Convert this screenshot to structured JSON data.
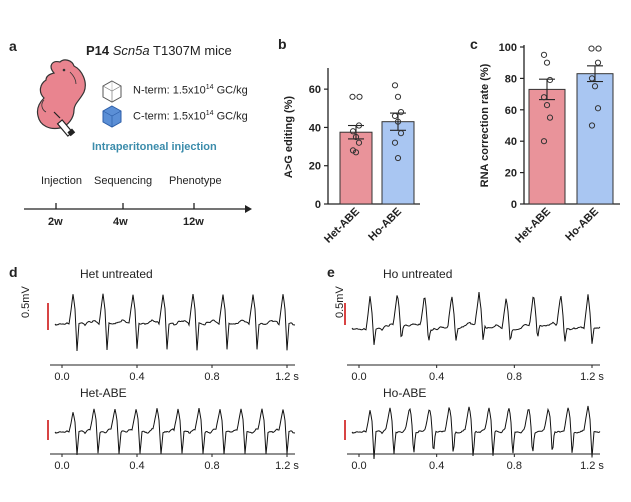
{
  "panel_a": {
    "label": "a",
    "title_bold": "P14",
    "title_gene": "Scn5a",
    "title_rest": "T1307M mice",
    "n_term": "N-term: 1.5x10",
    "c_term": "C-term: 1.5x10",
    "dose_exp": "14",
    "dose_unit": "GC/kg",
    "injection_route": "Intraperitoneal injection",
    "timeline_events": [
      "Injection",
      "Sequencing",
      "Phenotype"
    ],
    "timeline_ticks": [
      "2w",
      "4w",
      "12w"
    ],
    "colors": {
      "mouse": "#e9848f",
      "capsid_n": "#ffffff",
      "capsid_c": "#5b8fd6",
      "accent": "#3b8cab"
    }
  },
  "chart_data": [
    {
      "panel": "b",
      "type": "bar",
      "categories": [
        "Het-ABE",
        "Ho-ABE"
      ],
      "values": [
        37.5,
        43
      ],
      "errors": [
        3.5,
        4.5
      ],
      "points": [
        [
          56,
          56,
          41,
          38,
          35,
          32,
          28,
          27
        ],
        [
          62,
          56,
          48,
          46,
          43,
          37,
          32,
          24
        ]
      ],
      "ylabel": "A>G editing (%)",
      "ylim": [
        0,
        70
      ],
      "yticks": [
        0,
        20,
        40,
        60
      ],
      "colors": [
        "#e9939a",
        "#a9c6f2"
      ]
    },
    {
      "panel": "c",
      "type": "bar",
      "categories": [
        "Het-ABE",
        "Ho-ABE"
      ],
      "values": [
        73,
        83
      ],
      "errors": [
        6.5,
        5
      ],
      "points": [
        [
          95,
          90,
          79,
          68,
          63,
          55,
          40
        ],
        [
          99,
          99,
          90,
          80,
          75,
          61,
          50
        ]
      ],
      "ylabel": "RNA correction rate (%)",
      "ylim": [
        0,
        100
      ],
      "yticks": [
        0,
        20,
        40,
        60,
        80,
        100
      ],
      "colors": [
        "#e9939a",
        "#a9c6f2"
      ]
    }
  ],
  "panel_d": {
    "label": "d",
    "top_title": "Het untreated",
    "bottom_title": "Het-ABE",
    "scale_label": "0.5mV",
    "x_ticks": [
      "0.0",
      "0.4",
      "0.8",
      "1.2 s"
    ]
  },
  "panel_e": {
    "label": "e",
    "top_title": "Ho untreated",
    "bottom_title": "Ho-ABE",
    "scale_label": "0.5mV",
    "x_ticks": [
      "0.0",
      "0.4",
      "0.8",
      "1.2 s"
    ]
  }
}
